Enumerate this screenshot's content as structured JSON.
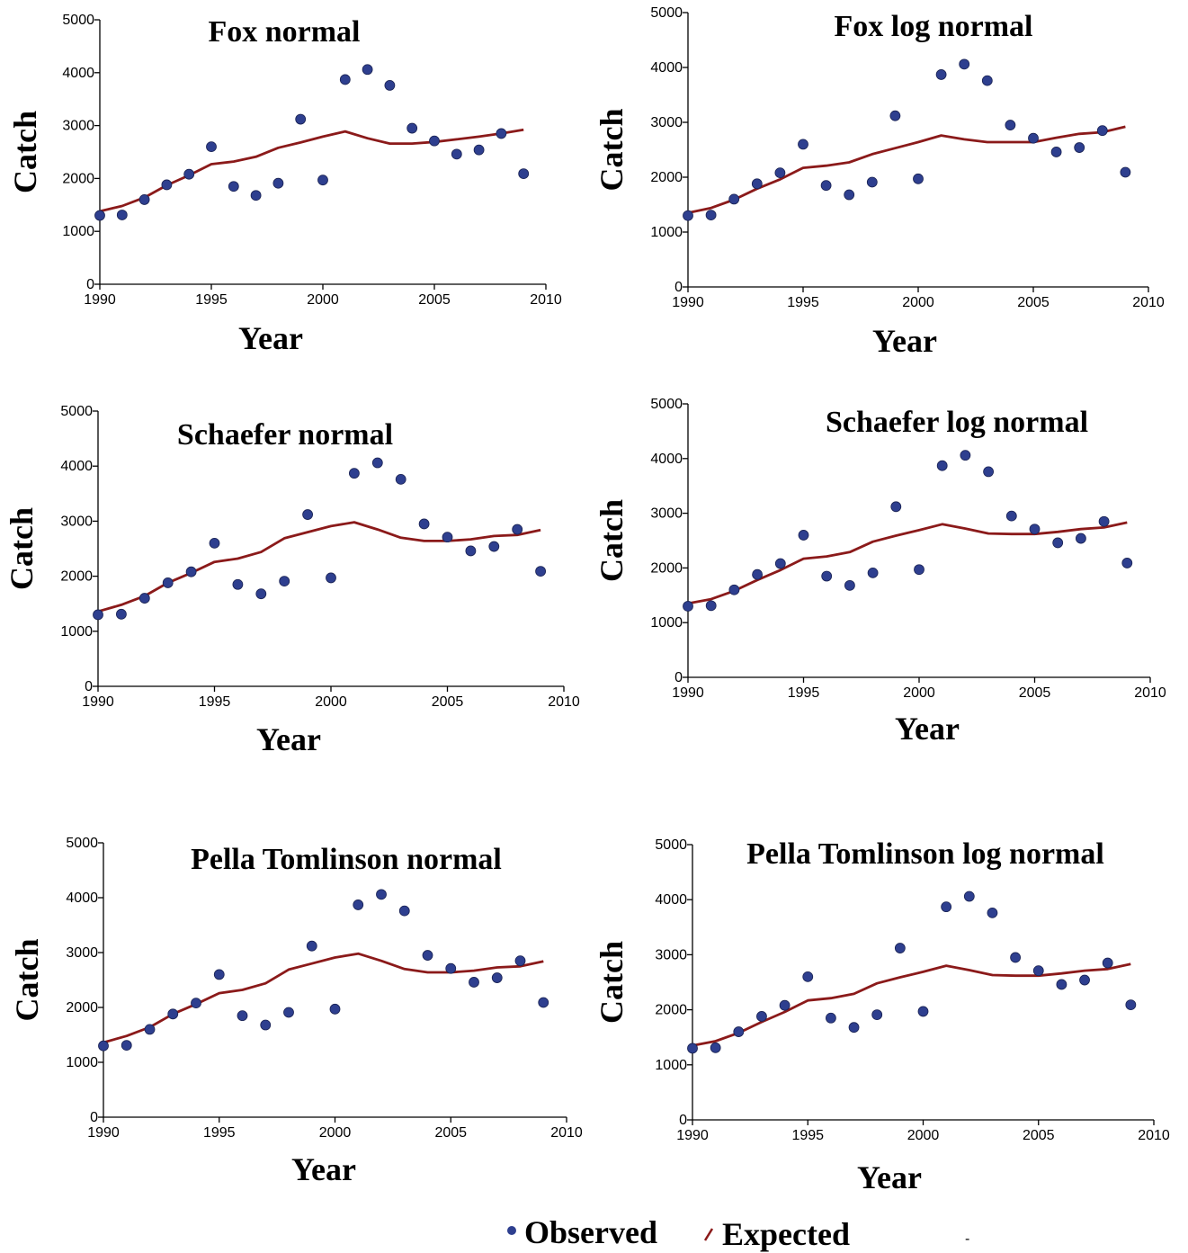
{
  "colors": {
    "observed": "#2e3f8f",
    "observed_edge": "#1a2354",
    "expected": "#8b1a1a",
    "axis": "#000000"
  },
  "legend": {
    "observed": "Observed",
    "expected": "Expected",
    "stray_mark": "-"
  },
  "chart_data": [
    {
      "type": "line",
      "title": "Fox normal",
      "xlabel": "Year",
      "ylabel": "Catch",
      "xlim": [
        1990,
        2010
      ],
      "ylim": [
        0,
        5000
      ],
      "xticks": [
        1990,
        1995,
        2000,
        2005,
        2010
      ],
      "yticks": [
        0,
        1000,
        2000,
        3000,
        4000,
        5000
      ],
      "x": [
        1990,
        1991,
        1992,
        1993,
        1994,
        1995,
        1996,
        1997,
        1998,
        1999,
        2000,
        2001,
        2002,
        2003,
        2004,
        2005,
        2006,
        2007,
        2008,
        2009
      ],
      "series": [
        {
          "name": "Observed",
          "kind": "scatter",
          "values": [
            1300,
            1310,
            1600,
            1880,
            2080,
            2600,
            1850,
            1680,
            1910,
            3120,
            1970,
            3870,
            4060,
            3760,
            2950,
            2710,
            2460,
            2540,
            2850,
            2090
          ]
        },
        {
          "name": "Expected",
          "kind": "line",
          "values": [
            1380,
            1480,
            1640,
            1870,
            2060,
            2270,
            2320,
            2410,
            2580,
            2680,
            2790,
            2890,
            2760,
            2660,
            2660,
            2690,
            2740,
            2790,
            2850,
            2920
          ]
        }
      ]
    },
    {
      "type": "line",
      "title": "Fox log normal",
      "xlabel": "Year",
      "ylabel": "Catch",
      "xlim": [
        1990,
        2010
      ],
      "ylim": [
        0,
        5000
      ],
      "xticks": [
        1990,
        1995,
        2000,
        2005,
        2010
      ],
      "yticks": [
        0,
        1000,
        2000,
        3000,
        4000,
        5000
      ],
      "x": [
        1990,
        1991,
        1992,
        1993,
        1994,
        1995,
        1996,
        1997,
        1998,
        1999,
        2000,
        2001,
        2002,
        2003,
        2004,
        2005,
        2006,
        2007,
        2008,
        2009
      ],
      "series": [
        {
          "name": "Observed",
          "kind": "scatter",
          "values": [
            1300,
            1310,
            1600,
            1880,
            2080,
            2600,
            1850,
            1680,
            1910,
            3120,
            1970,
            3870,
            4060,
            3760,
            2950,
            2710,
            2460,
            2540,
            2850,
            2090
          ]
        },
        {
          "name": "Expected",
          "kind": "line",
          "values": [
            1350,
            1440,
            1590,
            1790,
            1960,
            2170,
            2210,
            2270,
            2420,
            2530,
            2640,
            2760,
            2690,
            2640,
            2640,
            2640,
            2720,
            2790,
            2820,
            2920
          ]
        }
      ]
    },
    {
      "type": "line",
      "title": "Schaefer normal",
      "xlabel": "Year",
      "ylabel": "Catch",
      "xlim": [
        1990,
        2010
      ],
      "ylim": [
        0,
        5000
      ],
      "xticks": [
        1990,
        1995,
        2000,
        2005,
        2010
      ],
      "yticks": [
        0,
        1000,
        2000,
        3000,
        4000,
        5000
      ],
      "x": [
        1990,
        1991,
        1992,
        1993,
        1994,
        1995,
        1996,
        1997,
        1998,
        1999,
        2000,
        2001,
        2002,
        2003,
        2004,
        2005,
        2006,
        2007,
        2008,
        2009
      ],
      "series": [
        {
          "name": "Observed",
          "kind": "scatter",
          "values": [
            1300,
            1310,
            1600,
            1880,
            2080,
            2600,
            1850,
            1680,
            1910,
            3120,
            1970,
            3870,
            4060,
            3760,
            2950,
            2710,
            2460,
            2540,
            2850,
            2090
          ]
        },
        {
          "name": "Expected",
          "kind": "line",
          "values": [
            1360,
            1480,
            1640,
            1880,
            2060,
            2260,
            2320,
            2440,
            2690,
            2800,
            2910,
            2980,
            2850,
            2700,
            2640,
            2640,
            2670,
            2730,
            2750,
            2840
          ]
        }
      ]
    },
    {
      "type": "line",
      "title": "Schaefer log normal",
      "xlabel": "Year",
      "ylabel": "Catch",
      "xlim": [
        1990,
        2010
      ],
      "ylim": [
        0,
        5000
      ],
      "xticks": [
        1990,
        1995,
        2000,
        2005,
        2010
      ],
      "yticks": [
        0,
        1000,
        2000,
        3000,
        4000,
        5000
      ],
      "x": [
        1990,
        1991,
        1992,
        1993,
        1994,
        1995,
        1996,
        1997,
        1998,
        1999,
        2000,
        2001,
        2002,
        2003,
        2004,
        2005,
        2006,
        2007,
        2008,
        2009
      ],
      "series": [
        {
          "name": "Observed",
          "kind": "scatter",
          "values": [
            1300,
            1310,
            1600,
            1880,
            2080,
            2600,
            1850,
            1680,
            1910,
            3120,
            1970,
            3870,
            4060,
            3760,
            2950,
            2710,
            2460,
            2540,
            2850,
            2090
          ]
        },
        {
          "name": "Expected",
          "kind": "line",
          "values": [
            1350,
            1430,
            1580,
            1780,
            1960,
            2170,
            2210,
            2290,
            2480,
            2590,
            2690,
            2800,
            2720,
            2630,
            2620,
            2620,
            2660,
            2710,
            2740,
            2830
          ]
        }
      ]
    },
    {
      "type": "line",
      "title": "Pella Tomlinson normal",
      "xlabel": "Year",
      "ylabel": "Catch",
      "xlim": [
        1990,
        2010
      ],
      "ylim": [
        0,
        5000
      ],
      "xticks": [
        1990,
        1995,
        2000,
        2005,
        2010
      ],
      "yticks": [
        0,
        1000,
        2000,
        3000,
        4000,
        5000
      ],
      "x": [
        1990,
        1991,
        1992,
        1993,
        1994,
        1995,
        1996,
        1997,
        1998,
        1999,
        2000,
        2001,
        2002,
        2003,
        2004,
        2005,
        2006,
        2007,
        2008,
        2009
      ],
      "series": [
        {
          "name": "Observed",
          "kind": "scatter",
          "values": [
            1300,
            1310,
            1600,
            1880,
            2080,
            2600,
            1850,
            1680,
            1910,
            3120,
            1970,
            3870,
            4060,
            3760,
            2950,
            2710,
            2460,
            2540,
            2850,
            2090
          ]
        },
        {
          "name": "Expected",
          "kind": "line",
          "values": [
            1360,
            1480,
            1640,
            1880,
            2060,
            2260,
            2320,
            2440,
            2690,
            2800,
            2910,
            2980,
            2850,
            2700,
            2640,
            2640,
            2670,
            2730,
            2750,
            2840
          ]
        }
      ]
    },
    {
      "type": "line",
      "title": "Pella Tomlinson log normal",
      "xlabel": "Year",
      "ylabel": "Catch",
      "xlim": [
        1990,
        2010
      ],
      "ylim": [
        0,
        5000
      ],
      "xticks": [
        1990,
        1995,
        2000,
        2005,
        2010
      ],
      "yticks": [
        0,
        1000,
        2000,
        3000,
        4000,
        5000
      ],
      "x": [
        1990,
        1991,
        1992,
        1993,
        1994,
        1995,
        1996,
        1997,
        1998,
        1999,
        2000,
        2001,
        2002,
        2003,
        2004,
        2005,
        2006,
        2007,
        2008,
        2009
      ],
      "series": [
        {
          "name": "Observed",
          "kind": "scatter",
          "values": [
            1300,
            1310,
            1600,
            1880,
            2080,
            2600,
            1850,
            1680,
            1910,
            3120,
            1970,
            3870,
            4060,
            3760,
            2950,
            2710,
            2460,
            2540,
            2850,
            2090
          ]
        },
        {
          "name": "Expected",
          "kind": "line",
          "values": [
            1350,
            1430,
            1580,
            1780,
            1960,
            2170,
            2210,
            2290,
            2480,
            2590,
            2690,
            2800,
            2720,
            2630,
            2620,
            2620,
            2660,
            2710,
            2740,
            2830
          ]
        }
      ]
    }
  ]
}
